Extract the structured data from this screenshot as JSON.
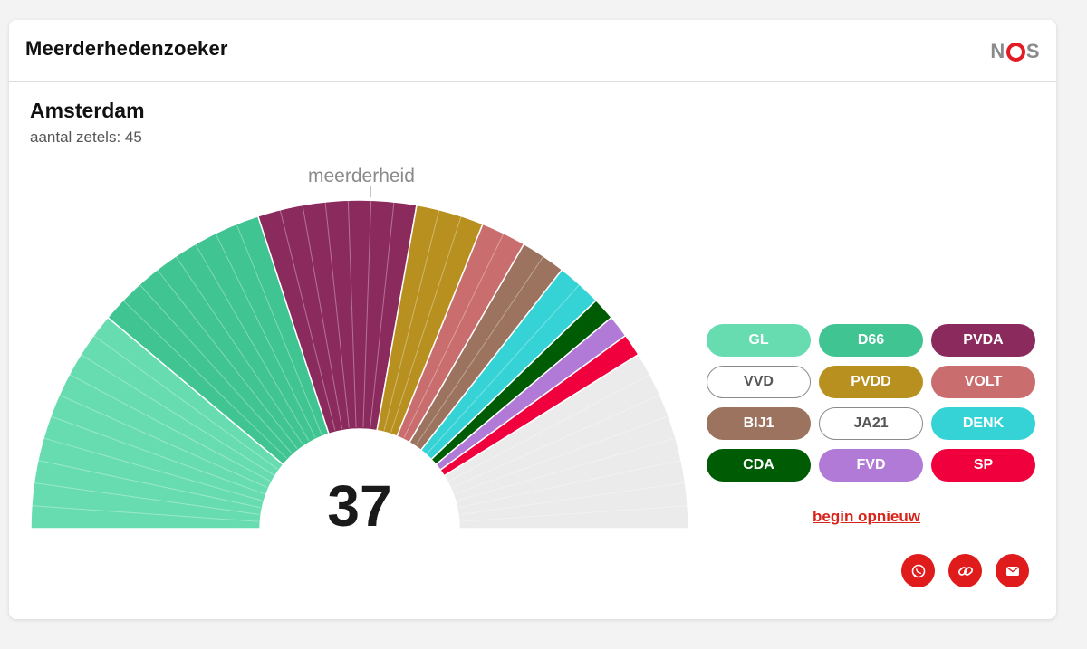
{
  "header": {
    "title": "Meerderhedenzoeker",
    "logo": "NOS"
  },
  "municipality": {
    "name": "Amsterdam",
    "seats_label": "aantal zetels: 45",
    "total_seats": 45
  },
  "chart_data": {
    "type": "semicircle-seat-chart",
    "majority_label": "meerderheid",
    "majority_seats": 23,
    "selected_total": "37",
    "selected_seats": 37,
    "series": [
      {
        "name": "GL",
        "seats": 10,
        "color": "#66dcb0",
        "selected": true
      },
      {
        "name": "D66",
        "seats": 8,
        "color": "#3fc492",
        "selected": true
      },
      {
        "name": "PVDA",
        "seats": 7,
        "color": "#8b2a5d",
        "selected": true
      },
      {
        "name": "PVDD",
        "seats": 3,
        "color": "#b8901f",
        "selected": true
      },
      {
        "name": "VOLT",
        "seats": 2,
        "color": "#c96d6e",
        "selected": true
      },
      {
        "name": "BIJ1",
        "seats": 2,
        "color": "#9b735e",
        "selected": true
      },
      {
        "name": "DENK",
        "seats": 2,
        "color": "#35d3d6",
        "selected": true
      },
      {
        "name": "CDA",
        "seats": 1,
        "color": "#005c04",
        "selected": true
      },
      {
        "name": "FVD",
        "seats": 1,
        "color": "#b07ad6",
        "selected": true
      },
      {
        "name": "SP",
        "seats": 1,
        "color": "#f0003c",
        "selected": true
      },
      {
        "name": "unselected",
        "seats": 8,
        "color": "#ebebeb",
        "selected": false
      }
    ]
  },
  "parties": [
    {
      "label": "GL",
      "color": "#66dcb0",
      "active": true
    },
    {
      "label": "D66",
      "color": "#3fc492",
      "active": true
    },
    {
      "label": "PVDA",
      "color": "#8b2a5d",
      "active": true
    },
    {
      "label": "VVD",
      "color": "#ffffff",
      "active": false
    },
    {
      "label": "PVDD",
      "color": "#b8901f",
      "active": true
    },
    {
      "label": "VOLT",
      "color": "#c96d6e",
      "active": true
    },
    {
      "label": "BIJ1",
      "color": "#9b735e",
      "active": true
    },
    {
      "label": "JA21",
      "color": "#ffffff",
      "active": false
    },
    {
      "label": "DENK",
      "color": "#35d3d6",
      "active": true
    },
    {
      "label": "CDA",
      "color": "#005c04",
      "active": true
    },
    {
      "label": "FVD",
      "color": "#b07ad6",
      "active": true
    },
    {
      "label": "SP",
      "color": "#f0003c",
      "active": true
    }
  ],
  "actions": {
    "restart_label": "begin opnieuw",
    "share": [
      {
        "icon": "whatsapp-icon"
      },
      {
        "icon": "link-icon"
      },
      {
        "icon": "email-icon"
      }
    ]
  }
}
